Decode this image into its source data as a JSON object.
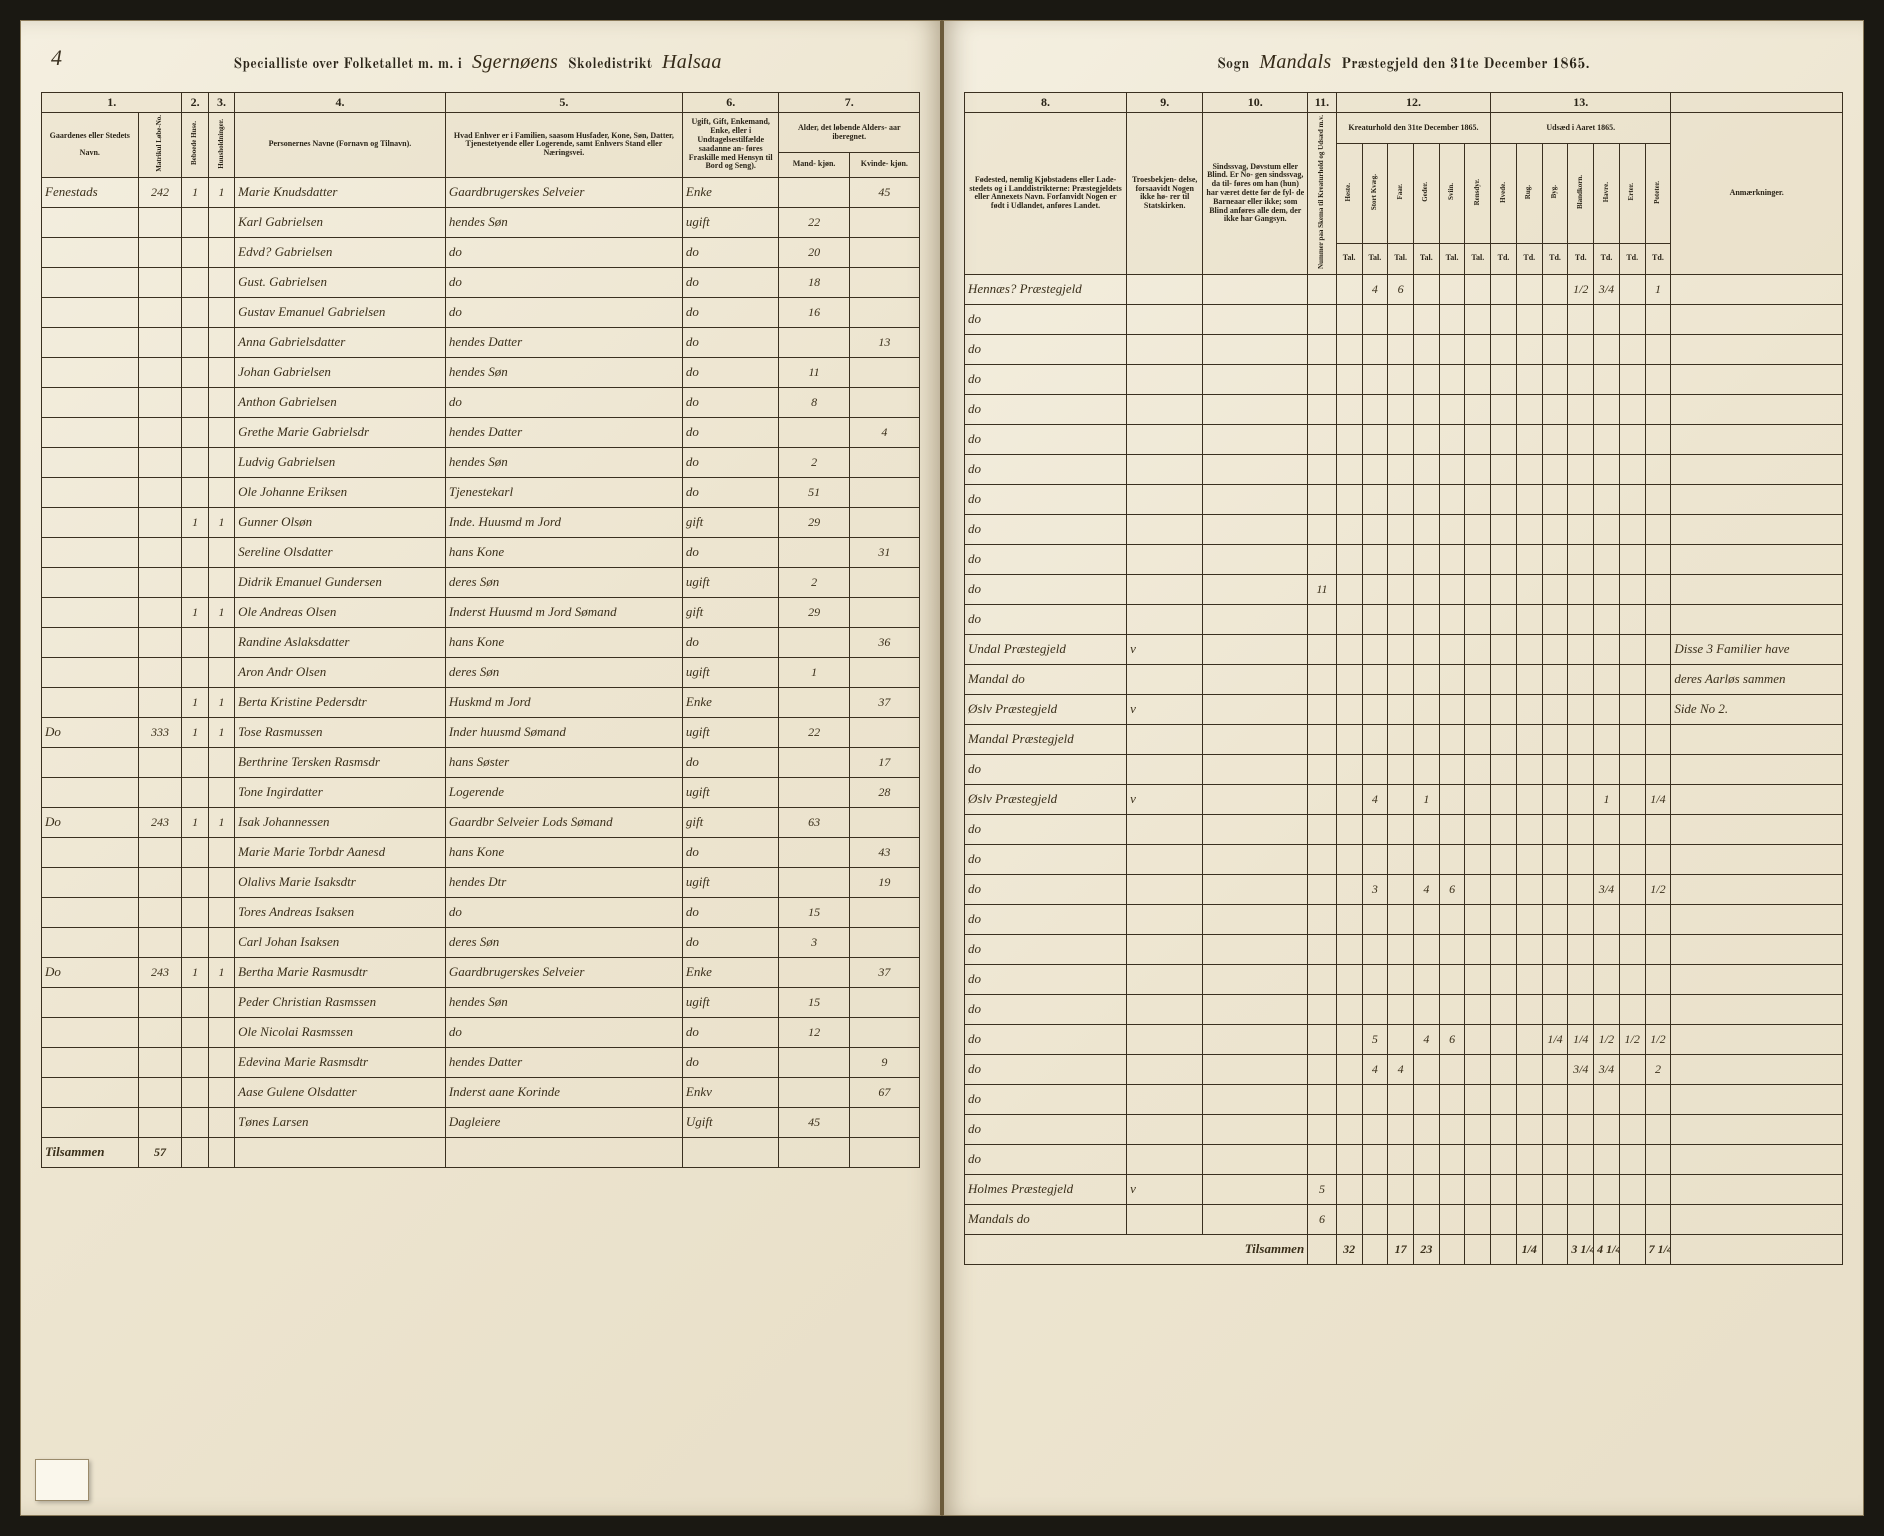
{
  "page_number": "4",
  "header_left": {
    "t1": "Specialliste over Folketallet m. m. i",
    "district": "Sgernøens",
    "t2": "Skoledistrikt",
    "parish": "Halsaa"
  },
  "header_right": {
    "t1": "Sogn",
    "parish2": "Mandals",
    "t2": "Præstegjeld den 31te December 1865."
  },
  "left_groups": [
    "1.",
    "2.",
    "3.",
    "4.",
    "5.",
    "6.",
    "7."
  ],
  "left_headers": {
    "c1a": "Gaardenes eller Stedets",
    "c1b": "Navn.",
    "c2a": "Matrikul Løbe-No.",
    "c3a": "Beboede Huse.",
    "c3b": "Huusholdninger.",
    "c4": "Personernes Navne (Fornavn og Tilnavn).",
    "c5": "Hvad Enhver er i Familien, saasom Husfader, Kone, Søn, Datter, Tjenestetyende eller Logerende, samt Enhvers Stand eller Næringsvei.",
    "c6": "Ugift, Gift, Enkemand, Enke, eller i Undtagelsestilfælde saadanne an- føres Fraskille med Hensyn til Bord og Seng).",
    "c7": "Alder, det løbende Alders- aar iberegnet.",
    "c7a": "Mand- kjøn.",
    "c7b": "Kvinde- kjøn."
  },
  "right_groups": [
    "8.",
    "9.",
    "10.",
    "11.",
    "12.",
    "13."
  ],
  "right_headers": {
    "c8": "Fødested, nemlig Kjøbstadens eller Lade- stedets og i Landdistrikterne: Præstegjeldets eller Annexets Navn. Forfanvidt Nogen er født i Udlandet, anføres Landet.",
    "c9": "Troesbekjen- delse, forsaavidt Nogen ikke hø- rer til Statskirken.",
    "c10": "Sindssvag, Døvstum eller Blind. Er No- gen sindssvag, da til- føres om han (hun) har været dette før de fyl- de Barneaar eller ikke; som Blind anføres alle dem, der ikke har Gangsyn.",
    "c11": "Nummer paa Skema til Kreaturhold og Udsæd m.v.",
    "c12": "Kreaturhold den 31te December 1865.",
    "c12_sub": [
      "Heste.",
      "Stort Kvæg.",
      "Faar.",
      "Geder.",
      "Sviin.",
      "Rensdyr."
    ],
    "c12_sub2": "Tal.",
    "c13": "Udsæd i Aaret 1865.",
    "c13_sub": [
      "Hvede.",
      "Rug.",
      "Byg.",
      "Blandkorn.",
      "Havre.",
      "Erter.",
      "Poteter."
    ],
    "c13_sub2": "Td.",
    "c14": "Anmærkninger."
  },
  "rows": [
    {
      "c1": "Fenestads",
      "c2": "242",
      "c3": "1",
      "c3b": "1",
      "c4": "Marie Knudsdatter",
      "c5": "Gaardbrugerskes Selveier",
      "c6": "Enke",
      "c7a": "",
      "c7b": "45",
      "c8": "Hennæs? Præstegjeld",
      "c12": [
        "",
        "4",
        "6",
        "",
        "",
        "",
        "",
        "",
        "",
        "1/2",
        "3/4",
        "",
        "1"
      ]
    },
    {
      "c4": "Karl Gabrielsen",
      "c5": "hendes Søn",
      "c6": "ugift",
      "c7a": "22",
      "c8": "do"
    },
    {
      "c4": "Edvd? Gabrielsen",
      "c5": "do",
      "c6": "do",
      "c7a": "20",
      "c8": "do"
    },
    {
      "c4": "Gust. Gabrielsen",
      "c5": "do",
      "c6": "do",
      "c7a": "18",
      "c8": "do"
    },
    {
      "c4": "Gustav Emanuel Gabrielsen",
      "c5": "do",
      "c6": "do",
      "c7a": "16",
      "c8": "do"
    },
    {
      "c4": "Anna Gabrielsdatter",
      "c5": "hendes Datter",
      "c6": "do",
      "c7b": "13",
      "c8": "do"
    },
    {
      "c4": "Johan Gabrielsen",
      "c5": "hendes Søn",
      "c6": "do",
      "c7a": "11",
      "c8": "do"
    },
    {
      "c4": "Anthon Gabrielsen",
      "c5": "do",
      "c6": "do",
      "c7a": "8",
      "c8": "do"
    },
    {
      "c4": "Grethe Marie Gabrielsdr",
      "c5": "hendes Datter",
      "c6": "do",
      "c7b": "4",
      "c8": "do"
    },
    {
      "c4": "Ludvig Gabrielsen",
      "c5": "hendes Søn",
      "c6": "do",
      "c7a": "2",
      "c8": "do"
    },
    {
      "c4": "Ole Johanne Eriksen",
      "c5": "Tjenestekarl",
      "c6": "do",
      "c7a": "51",
      "c8": "do",
      "c11": "11"
    },
    {
      "c3": "1",
      "c3b": "1",
      "c4": "Gunner Olsøn",
      "c5": "Inde. Huusmd m Jord",
      "c6": "gift",
      "c7a": "29",
      "c8": "do"
    },
    {
      "c4": "Sereline Olsdatter",
      "c5": "hans Kone",
      "c6": "do",
      "c7b": "31",
      "c8": "Undal Præstegjeld",
      "c9": "v",
      "c14": "Disse 3 Familier have"
    },
    {
      "c4": "Didrik Emanuel Gundersen",
      "c5": "deres Søn",
      "c6": "ugift",
      "c7a": "2",
      "c8": "Mandal do",
      "c14": "deres Aarløs sammen"
    },
    {
      "c3": "1",
      "c3b": "1",
      "c4": "Ole Andreas Olsen",
      "c5": "Inderst Huusmd m Jord  Sømand",
      "c6": "gift",
      "c7a": "29",
      "c8": "Øslv Præstegjeld",
      "c9": "v",
      "c14": "Side No 2."
    },
    {
      "c4": "Randine Aslaksdatter",
      "c5": "hans Kone",
      "c6": "do",
      "c7b": "36",
      "c8": "Mandal Præstegjeld"
    },
    {
      "c4": "Aron Andr Olsen",
      "c5": "deres Søn",
      "c6": "ugift",
      "c7a": "1",
      "c8": "do"
    },
    {
      "c3": "1",
      "c3b": "1",
      "c4": "Berta Kristine Pedersdtr",
      "c5": "Huskmd m Jord",
      "c6": "Enke",
      "c7b": "37",
      "c8": "Øslv Præstegjeld",
      "c9": "v",
      "c12": [
        "",
        "4",
        "",
        "1",
        "",
        "",
        "",
        "",
        "",
        "",
        "1",
        "",
        "1/4"
      ]
    },
    {
      "c1": "Do",
      "c2": "333",
      "c3": "1",
      "c3b": "1",
      "c4": "Tose Rasmussen",
      "c5": "Inder huusmd Sømand",
      "c6": "ugift",
      "c7a": "22",
      "c8": "do"
    },
    {
      "c4": "Berthrine Tersken Rasmsdr",
      "c5": "hans Søster",
      "c6": "do",
      "c7b": "17",
      "c8": "do"
    },
    {
      "c4": "Tone Ingirdatter",
      "c5": "Logerende",
      "c6": "ugift",
      "c7b": "28",
      "c8": "do",
      "c12": [
        "",
        "3",
        "",
        "4",
        "6",
        "",
        "",
        "",
        "",
        "",
        "3/4",
        "",
        "1/2"
      ]
    },
    {
      "c1": "Do",
      "c2": "243",
      "c3": "1",
      "c3b": "1",
      "c4": "Isak Johannessen",
      "c5": "Gaardbr Selveier Lods Sømand",
      "c6": "gift",
      "c7a": "63",
      "c8": "do"
    },
    {
      "c4": "Marie Marie Torbdr Aanesd",
      "c5": "hans Kone",
      "c6": "do",
      "c7b": "43",
      "c8": "do"
    },
    {
      "c4": "Olalivs Marie Isaksdtr",
      "c5": "hendes Dtr",
      "c6": "ugift",
      "c7b": "19",
      "c8": "do"
    },
    {
      "c4": "Tores Andreas Isaksen",
      "c5": "do",
      "c6": "do",
      "c7a": "15",
      "c8": "do"
    },
    {
      "c4": "Carl Johan Isaksen",
      "c5": "deres Søn",
      "c6": "do",
      "c7a": "3",
      "c8": "do",
      "c12": [
        "",
        "5",
        "",
        "4",
        "6",
        "",
        "",
        "",
        "1/4",
        "1/4",
        "1/2",
        "1/2",
        "1/2"
      ]
    },
    {
      "c1": "Do",
      "c2": "243",
      "c3": "1",
      "c3b": "1",
      "c4": "Bertha Marie Rasmusdtr",
      "c5": "Gaardbrugerskes Selveier",
      "c6": "Enke",
      "c7b": "37",
      "c8": "do",
      "c12": [
        "",
        "4",
        "4",
        "",
        "",
        "",
        "",
        "",
        "",
        "3/4",
        "3/4",
        "",
        "2"
      ]
    },
    {
      "c4": "Peder Christian Rasmssen",
      "c5": "hendes Søn",
      "c6": "ugift",
      "c7a": "15",
      "c8": "do"
    },
    {
      "c4": "Ole Nicolai Rasmssen",
      "c5": "do",
      "c6": "do",
      "c7a": "12",
      "c8": "do"
    },
    {
      "c4": "Edevina Marie Rasmsdtr",
      "c5": "hendes Datter",
      "c6": "do",
      "c7b": "9",
      "c8": "do"
    },
    {
      "c1": "",
      "c2": "",
      "c4": "Aase Gulene Olsdatter",
      "c5": "Inderst aane Korinde",
      "c6": "Enkv",
      "c7b": "67",
      "c8": "Holmes Præstegjeld",
      "c9": "v",
      "c11": "5"
    },
    {
      "c1": "",
      "c4": "Tønes Larsen",
      "c5": "Dagleiere",
      "c6": "Ugift",
      "c7a": "45",
      "c8": "Mandals do",
      "c11": "6"
    }
  ],
  "footer_left": {
    "label": "Tilsammen",
    "sum3": "57"
  },
  "footer_right": {
    "label": "Tilsammen",
    "sums": [
      "32",
      "",
      "17",
      "23",
      "",
      "",
      "",
      "1/4",
      "",
      "3 1/4",
      "4 1/4",
      "",
      "7 1/4"
    ]
  }
}
